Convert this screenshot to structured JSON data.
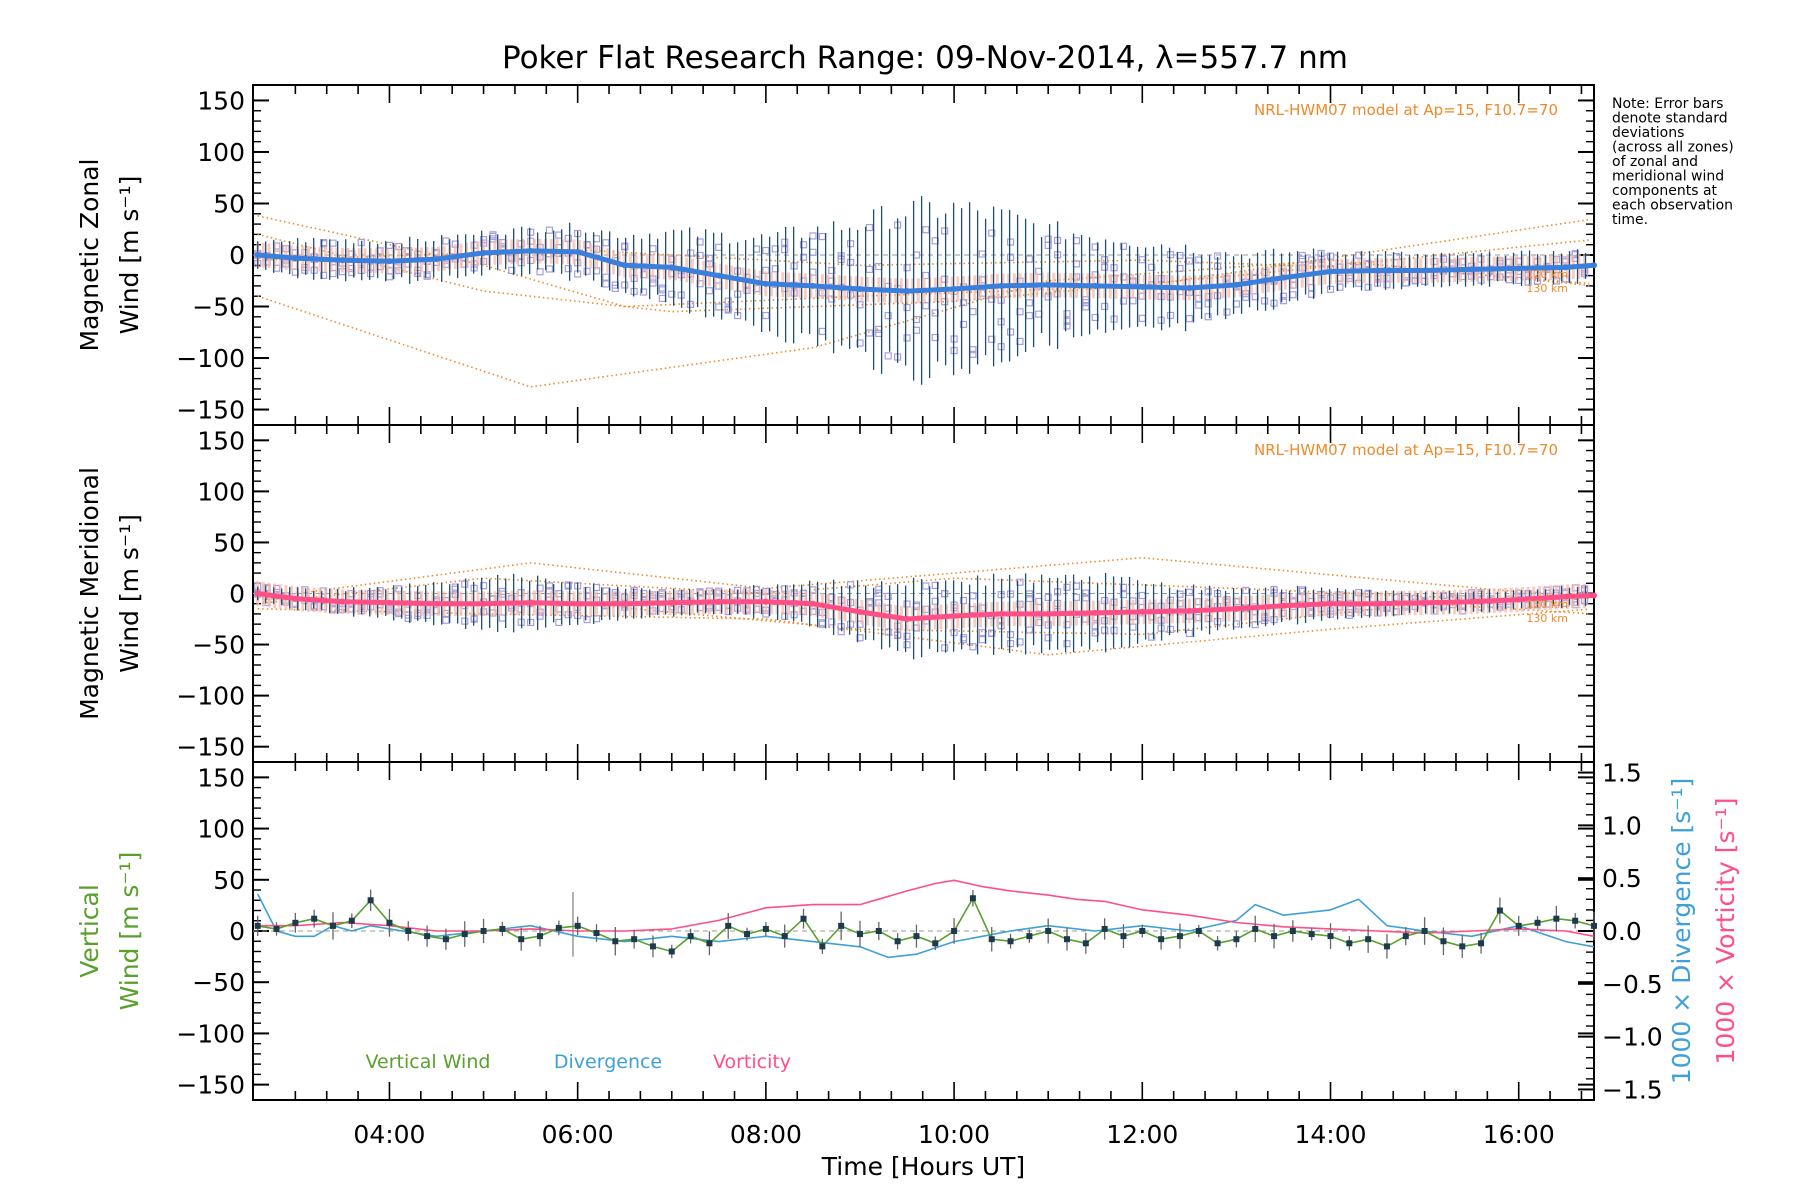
{
  "title": "Poker Flat Research Range: 09-Nov-2014, λ=557.7 nm",
  "note_lines": [
    "Note: Error bars",
    "denote standard",
    "deviations",
    "(across all zones)",
    "of zonal and",
    "meridional wind",
    "components at",
    "each observation",
    "time."
  ],
  "colors": {
    "zonal": "#3a7fdc",
    "meridional": "#ff4f86",
    "vertical": "#5aa02c",
    "divergence": "#3ea0d8",
    "vorticity": "#ff4f86",
    "model": "#ee8a2a",
    "zone_points": "#a79ee0",
    "error_bar": "#1f4f6e"
  },
  "chart_data": [
    {
      "type": "line",
      "panel": "zonal",
      "ylabel_lines": [
        "Magnetic Zonal",
        "Wind [m s⁻¹]"
      ],
      "ylim": [
        -165,
        165
      ],
      "yticks": [
        150,
        100,
        50,
        0,
        -50,
        -100,
        -150
      ],
      "xlim": [
        2.55,
        16.8
      ],
      "annotation": "NRL-HWM07 model at Ap=15, F10.7=70",
      "model_labels": [
        "120 km",
        "130 km"
      ],
      "series": [
        {
          "x": [
            2.6,
            3.0,
            3.5,
            4.0,
            4.5,
            5.0,
            5.5,
            6.0,
            6.5,
            7.0,
            7.5,
            8.0,
            8.5,
            9.0,
            9.5,
            10.0,
            10.5,
            11.0,
            11.5,
            12.0,
            12.5,
            13.0,
            13.5,
            14.0,
            14.5,
            15.0,
            15.5,
            16.0,
            16.5,
            16.8
          ],
          "y": [
            0,
            -3,
            -5,
            -6,
            -4,
            2,
            4,
            3,
            -10,
            -12,
            -20,
            -28,
            -30,
            -33,
            -35,
            -33,
            -30,
            -29,
            -30,
            -31,
            -32,
            -29,
            -22,
            -16,
            -15,
            -15,
            -14,
            -13,
            -12,
            -10
          ]
        }
      ],
      "error_sd": [
        12,
        18,
        20,
        20,
        20,
        20,
        22,
        25,
        30,
        35,
        40,
        45,
        55,
        65,
        80,
        80,
        70,
        55,
        50,
        45,
        40,
        30,
        25,
        20,
        18,
        15,
        15,
        15,
        15,
        15
      ]
    },
    {
      "type": "line",
      "panel": "meridional",
      "ylabel_lines": [
        "Magnetic Meridional",
        "Wind [m s⁻¹]"
      ],
      "ylim": [
        -165,
        165
      ],
      "yticks": [
        150,
        100,
        50,
        0,
        -50,
        -100,
        -150
      ],
      "xlim": [
        2.55,
        16.8
      ],
      "annotation": "NRL-HWM07 model at Ap=15, F10.7=70",
      "model_labels": [
        "120 km",
        "130 km"
      ],
      "series": [
        {
          "x": [
            2.6,
            3.0,
            3.5,
            4.0,
            4.5,
            5.0,
            5.5,
            6.0,
            6.5,
            7.0,
            7.5,
            8.0,
            8.5,
            9.0,
            9.5,
            10.0,
            10.5,
            11.0,
            11.5,
            12.0,
            12.5,
            13.0,
            13.5,
            14.0,
            14.5,
            15.0,
            15.5,
            16.0,
            16.5,
            16.8
          ],
          "y": [
            0,
            -5,
            -8,
            -9,
            -10,
            -10,
            -9,
            -10,
            -10,
            -9,
            -8,
            -8,
            -10,
            -18,
            -25,
            -22,
            -20,
            -20,
            -19,
            -18,
            -17,
            -15,
            -12,
            -10,
            -10,
            -9,
            -8,
            -6,
            -3,
            -2
          ]
        }
      ],
      "error_sd": [
        8,
        10,
        12,
        15,
        20,
        25,
        25,
        20,
        15,
        12,
        12,
        15,
        20,
        30,
        35,
        35,
        35,
        35,
        35,
        30,
        25,
        20,
        18,
        15,
        12,
        10,
        10,
        10,
        10,
        10
      ]
    },
    {
      "type": "line",
      "panel": "vertical",
      "ylabel_lines": [
        "Vertical",
        "Wind [m s⁻¹]"
      ],
      "right_labels": [
        "1000 × Divergence [s⁻¹]",
        "1000 × Vorticity [s⁻¹]"
      ],
      "ylim": [
        -165,
        165
      ],
      "yticks": [
        150,
        100,
        50,
        0,
        -50,
        -100,
        -150
      ],
      "y2lim": [
        -1.6,
        1.6
      ],
      "y2ticks": [
        1.5,
        1.0,
        0.5,
        0.0,
        -0.5,
        -1.0,
        -1.5
      ],
      "y2ticklabels": [
        "1.5",
        "1.0",
        "0.5",
        "0.0",
        "−0.5",
        "−1.0",
        "−1.5"
      ],
      "xlim": [
        2.55,
        16.8
      ],
      "xticks": [
        4,
        6,
        8,
        10,
        12,
        14,
        16
      ],
      "xticklabels": [
        "04:00",
        "06:00",
        "08:00",
        "10:00",
        "12:00",
        "14:00",
        "16:00"
      ],
      "xlabel": "Time [Hours UT]",
      "legend": [
        "Vertical Wind",
        "Divergence",
        "Vorticity"
      ],
      "series": [
        {
          "name": "Vertical Wind",
          "x": [
            2.6,
            2.8,
            3.0,
            3.2,
            3.4,
            3.6,
            3.8,
            4.0,
            4.2,
            4.4,
            4.6,
            4.8,
            5.0,
            5.2,
            5.4,
            5.6,
            5.8,
            6.0,
            6.2,
            6.4,
            6.6,
            6.8,
            7.0,
            7.2,
            7.4,
            7.6,
            7.8,
            8.0,
            8.2,
            8.4,
            8.6,
            8.8,
            9.0,
            9.2,
            9.4,
            9.6,
            9.8,
            10.0,
            10.2,
            10.4,
            10.6,
            10.8,
            11.0,
            11.2,
            11.4,
            11.6,
            11.8,
            12.0,
            12.2,
            12.4,
            12.6,
            12.8,
            13.0,
            13.2,
            13.4,
            13.6,
            13.8,
            14.0,
            14.2,
            14.4,
            14.6,
            14.8,
            15.0,
            15.2,
            15.4,
            15.6,
            15.8,
            16.0,
            16.2,
            16.4,
            16.6,
            16.8
          ],
          "y": [
            5,
            2,
            8,
            12,
            5,
            10,
            30,
            8,
            0,
            -5,
            -8,
            -3,
            0,
            2,
            -8,
            -5,
            3,
            5,
            -2,
            -10,
            -8,
            -15,
            -20,
            -5,
            -12,
            5,
            -3,
            2,
            -5,
            12,
            -15,
            5,
            -3,
            0,
            -10,
            -5,
            -12,
            0,
            32,
            -8,
            -10,
            -5,
            0,
            -8,
            -12,
            2,
            -5,
            0,
            -8,
            -5,
            0,
            -12,
            -8,
            2,
            -5,
            0,
            -3,
            -5,
            -12,
            -8,
            -15,
            -5,
            0,
            -10,
            -15,
            -12,
            20,
            5,
            8,
            12,
            10,
            5
          ]
        },
        {
          "name": "Divergence",
          "x": [
            2.6,
            2.8,
            3.0,
            3.2,
            3.4,
            3.6,
            3.8,
            4.0,
            4.5,
            5.0,
            5.5,
            6.0,
            6.5,
            7.0,
            7.5,
            8.0,
            8.5,
            9.0,
            9.3,
            9.6,
            10.0,
            10.3,
            10.6,
            11.0,
            11.5,
            12.0,
            12.5,
            13.0,
            13.2,
            13.5,
            14.0,
            14.3,
            14.6,
            15.0,
            15.5,
            16.0,
            16.5,
            16.8
          ],
          "y": [
            0.35,
            0.0,
            -0.05,
            -0.05,
            0.05,
            0.0,
            0.05,
            0.02,
            -0.05,
            0.0,
            0.05,
            -0.05,
            -0.1,
            -0.05,
            -0.1,
            -0.05,
            -0.1,
            -0.15,
            -0.25,
            -0.22,
            -0.1,
            -0.05,
            0.0,
            0.05,
            0.0,
            0.05,
            0.0,
            0.1,
            0.25,
            0.15,
            0.2,
            0.3,
            0.05,
            0.0,
            -0.05,
            0.05,
            -0.1,
            -0.15
          ]
        },
        {
          "name": "Vorticity",
          "x": [
            2.6,
            3.0,
            3.5,
            4.0,
            4.5,
            5.0,
            5.5,
            6.0,
            6.5,
            7.0,
            7.5,
            8.0,
            8.5,
            9.0,
            9.5,
            9.8,
            10.0,
            10.3,
            10.6,
            11.0,
            11.3,
            11.6,
            12.0,
            12.5,
            13.0,
            13.5,
            14.0,
            14.5,
            15.0,
            15.5,
            16.0,
            16.5,
            16.8
          ],
          "y": [
            0.05,
            0.05,
            0.08,
            0.05,
            0.0,
            0.0,
            0.02,
            0.0,
            0.0,
            0.02,
            0.1,
            0.22,
            0.25,
            0.25,
            0.38,
            0.45,
            0.48,
            0.42,
            0.38,
            0.34,
            0.3,
            0.28,
            0.2,
            0.15,
            0.08,
            0.04,
            0.02,
            0.0,
            -0.02,
            0.0,
            0.02,
            0.0,
            -0.05
          ]
        }
      ]
    }
  ]
}
